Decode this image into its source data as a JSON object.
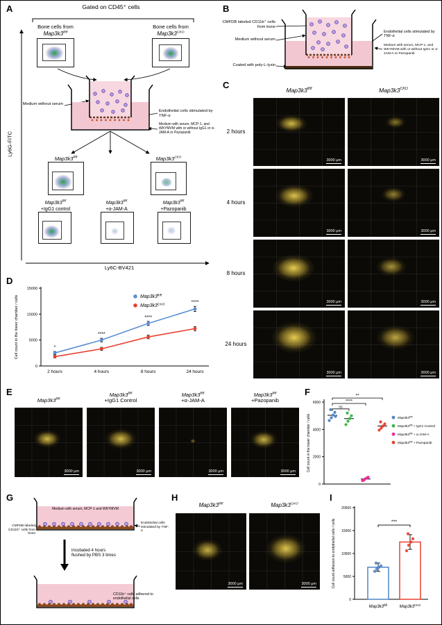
{
  "scale_bar": "3000 μm",
  "gene": {
    "base": "Map3k3",
    "fl": "fl/fl",
    "cko": "CKO"
  },
  "panelA": {
    "label": "A",
    "gated_title": "Gated on CD45⁺ cells",
    "bone_from": "Bone cells from",
    "medium_without_serum": "Medium without serum",
    "endothelial": "Endothelial cells stimulated by TNF-α",
    "medium_with": "Medium with serum, MCP-1, and WKYMVM with or without IgG1 or α-JAM-A or Pazopanib",
    "plus_igg1": "+IgG1 control",
    "plus_jama": "+α-JAM-A",
    "plus_pazo": "+Pazopanib",
    "y_axis": "Ly6G-FITC",
    "x_axis": "Ly6C-BV421"
  },
  "panelB": {
    "label": "B",
    "cmfdb": "CMFDB labeled CD11b⁺ cells from bone",
    "medium_without_serum": "Medium without serum",
    "endothelial": "Endothelial cells stimulated by TNF-α",
    "medium_with": "Medium with serum, MCP-1, and WKYMVM with or without IgG1 or α-JAM-A or Pazopanib",
    "coated": "Coated with poly-L-lysin"
  },
  "panelC": {
    "label": "C",
    "rows": [
      {
        "label": "2 hours"
      },
      {
        "label": "4 hours"
      },
      {
        "label": "8 hours"
      },
      {
        "label": "24 hours"
      }
    ]
  },
  "panelD": {
    "label": "D"
  },
  "panelE": {
    "label": "E",
    "cols": [
      "",
      "+IgG1 Control",
      "+α-JAM-A",
      "+Pazopanib"
    ]
  },
  "panelF": {
    "label": "F"
  },
  "panelG": {
    "label": "G",
    "medium_top": "Medium with serum, MCP-1 and WKYMVM",
    "cmfdb": "CMFDB labeled CD11b⁺ cells from bone",
    "endothelial": "Endothelial cells stimulated by TNF-α",
    "incubated": "incubated 4 hours\nflushed by PBS 3 times",
    "adhered": "CD11b⁺ cells adhered to endothelial cells"
  },
  "panelH": {
    "label": "H"
  },
  "panelI": {
    "label": "I"
  },
  "chart_data": [
    {
      "id": "D",
      "type": "line",
      "categories": [
        "2 hours",
        "4 hours",
        "8 hours",
        "24 hours"
      ],
      "series": [
        {
          "name": {
            "base": "Map3k3",
            "sup": "fl/fl"
          },
          "color": "#5b8fd4",
          "values": [
            2500,
            5000,
            8200,
            11000
          ],
          "errors": [
            300,
            350,
            400,
            500
          ]
        },
        {
          "name": {
            "base": "Map3k3",
            "sup": "CKO"
          },
          "color": "#e8402f",
          "values": [
            1800,
            3300,
            5600,
            7200
          ],
          "errors": [
            250,
            300,
            350,
            400
          ]
        }
      ],
      "significance": [
        "*",
        "****",
        "****",
        "****"
      ],
      "ylabel": "Cell count in the lower chamber / cells",
      "ylim": [
        0,
        15000
      ],
      "yticks": [
        0,
        5000,
        10000,
        15000
      ],
      "legend_position": "top-right-inside",
      "grid": false
    },
    {
      "id": "F",
      "type": "scatter",
      "ylabel": "Cell count in the lower chamber / cells",
      "ylim": [
        0,
        6000
      ],
      "yticks": [
        0,
        2000,
        4000,
        6000
      ],
      "groups": [
        {
          "name": {
            "base": "Map3k3",
            "sup": "fl/fl",
            "suffix": ""
          },
          "color": "#4f86c6",
          "values": [
            4650,
            4850,
            5050,
            5250,
            5450,
            4950
          ]
        },
        {
          "name": {
            "base": "Map3k3",
            "sup": "fl/fl",
            "suffix": " + IgG1 Control"
          },
          "color": "#3bb54a",
          "values": [
            4350,
            4600,
            4800,
            5000,
            5200
          ]
        },
        {
          "name": {
            "base": "Map3k3",
            "sup": "fl/fl",
            "suffix": " + α-JAM-A"
          },
          "color": "#ec2d9b",
          "values": [
            250,
            350,
            430,
            500,
            300
          ]
        },
        {
          "name": {
            "base": "Map3k3",
            "sup": "fl/fl",
            "suffix": " + Pazopanib"
          },
          "color": "#e8402f",
          "values": [
            3950,
            4100,
            4250,
            4400,
            4550
          ]
        }
      ],
      "significance": [
        {
          "from": 0,
          "to": 1,
          "label": "ns",
          "y": 5500
        },
        {
          "from": 0,
          "to": 2,
          "label": "****",
          "y": 5900
        },
        {
          "from": 0,
          "to": 3,
          "label": "**",
          "y": 6300
        }
      ],
      "legend_position": "right",
      "grid": false
    },
    {
      "id": "I",
      "type": "bar",
      "ylabel": "Cell count adhesion to endothelial cells / cells",
      "ylim": [
        0,
        20000
      ],
      "yticks": [
        0,
        5000,
        10000,
        15000,
        20000
      ],
      "categories": [
        {
          "base": "Map3k3",
          "sup": "fl/fl"
        },
        {
          "base": "Map3k3",
          "sup": "CKO"
        }
      ],
      "bars": [
        {
          "color": "#4f86c6",
          "mean": 7000,
          "error": 900,
          "points": [
            6100,
            6600,
            7000,
            7300,
            7900
          ]
        },
        {
          "color": "#e8402f",
          "mean": 12500,
          "error": 1600,
          "points": [
            10600,
            11800,
            12500,
            13200,
            14300
          ]
        }
      ],
      "significance": "***",
      "grid": false
    }
  ]
}
